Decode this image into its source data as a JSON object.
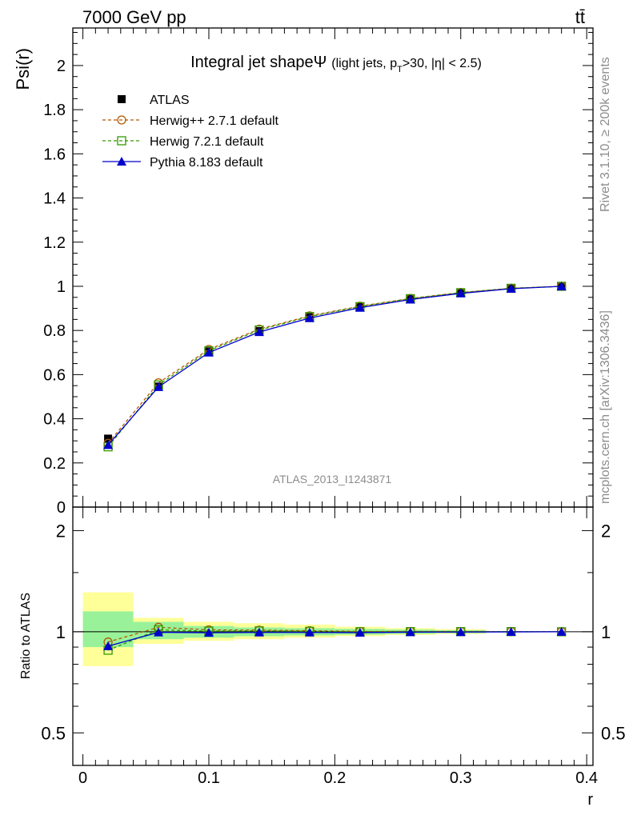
{
  "header": {
    "energy_label": "7000 GeV pp",
    "process_label": "tt̄"
  },
  "side_text": {
    "rivet": "Rivet 3.1.10, ≥ 200k events",
    "mcplots": "mcplots.cern.ch [arXiv:1306.3436]"
  },
  "watermark": "ATLAS_2013_I1243871",
  "colors": {
    "atlas": "#000000",
    "herwigpp": "#b35900",
    "herwig7": "#339900",
    "pythia": "#0000cc",
    "band_inner": "#99f299",
    "band_outer": "#ffff99"
  },
  "chart_data": [
    {
      "type": "line",
      "panel": "main",
      "title_main": "Integral jet shape",
      "title_symbol": "Ψ",
      "title_sub_pre": "(light jets, p",
      "title_sub_T": "T",
      "title_sub_post": ">30, |η| < 2.5)",
      "ylabel": "Psi(r)",
      "xlim": [
        -0.008,
        0.405
      ],
      "ylim": [
        0,
        2.17
      ],
      "yticks": [
        "0",
        "0.2",
        "0.4",
        "0.6",
        "0.8",
        "1",
        "1.2",
        "1.4",
        "1.6",
        "1.8",
        "2"
      ],
      "x": [
        0.02,
        0.06,
        0.1,
        0.14,
        0.18,
        0.22,
        0.26,
        0.3,
        0.34,
        0.38
      ],
      "legend": [
        "ATLAS",
        "Herwig++ 2.7.1 default",
        "Herwig 7.2.1 default",
        "Pythia 8.183 default"
      ],
      "series": [
        {
          "name": "ATLAS",
          "values": [
            0.31,
            0.546,
            0.705,
            0.797,
            0.86,
            0.908,
            0.943,
            0.97,
            0.99,
            1.0
          ]
        },
        {
          "name": "Herwig++ 2.7.1 default",
          "values": [
            0.289,
            0.563,
            0.714,
            0.806,
            0.866,
            0.91,
            0.945,
            0.972,
            0.991,
            1.0
          ]
        },
        {
          "name": "Herwig 7.2.1 default",
          "values": [
            0.273,
            0.553,
            0.708,
            0.802,
            0.863,
            0.908,
            0.944,
            0.971,
            0.991,
            1.0
          ]
        },
        {
          "name": "Pythia 8.183 default",
          "values": [
            0.281,
            0.544,
            0.7,
            0.793,
            0.856,
            0.903,
            0.94,
            0.968,
            0.989,
            1.0
          ]
        }
      ]
    },
    {
      "type": "line",
      "panel": "ratio",
      "ylabel": "Ratio to ATLAS",
      "xlabel": "r",
      "xticks": [
        "0",
        "0.1",
        "0.2",
        "0.3",
        "0.4"
      ],
      "yticks": [
        "0.5",
        "1",
        "2"
      ],
      "ylim_log": [
        0.4,
        2.35
      ],
      "band_bins": [
        {
          "lo": 0.0,
          "hi": 0.04,
          "inner": [
            0.9,
            1.15
          ],
          "outer": [
            0.79,
            1.31
          ]
        },
        {
          "lo": 0.04,
          "hi": 0.08,
          "inner": [
            0.95,
            1.07
          ],
          "outer": [
            0.92,
            1.1
          ]
        },
        {
          "lo": 0.08,
          "hi": 0.12,
          "inner": [
            0.96,
            1.04
          ],
          "outer": [
            0.94,
            1.07
          ]
        },
        {
          "lo": 0.12,
          "hi": 0.16,
          "inner": [
            0.97,
            1.03
          ],
          "outer": [
            0.95,
            1.06
          ]
        },
        {
          "lo": 0.16,
          "hi": 0.2,
          "inner": [
            0.975,
            1.025
          ],
          "outer": [
            0.96,
            1.05
          ]
        },
        {
          "lo": 0.2,
          "hi": 0.24,
          "inner": [
            0.98,
            1.02
          ],
          "outer": [
            0.97,
            1.035
          ]
        },
        {
          "lo": 0.24,
          "hi": 0.28,
          "inner": [
            0.985,
            1.015
          ],
          "outer": [
            0.978,
            1.025
          ]
        },
        {
          "lo": 0.28,
          "hi": 0.32,
          "inner": [
            0.99,
            1.01
          ],
          "outer": [
            0.985,
            1.018
          ]
        }
      ],
      "x": [
        0.02,
        0.06,
        0.1,
        0.14,
        0.18,
        0.22,
        0.26,
        0.3,
        0.34,
        0.38
      ],
      "series": [
        {
          "name": "Herwig++ 2.7.1 default",
          "values": [
            0.932,
            1.031,
            1.013,
            1.011,
            1.007,
            1.002,
            1.002,
            1.002,
            1.001,
            1.0
          ]
        },
        {
          "name": "Herwig 7.2.1 default",
          "values": [
            0.881,
            1.013,
            1.004,
            1.006,
            1.003,
            1.0,
            1.001,
            1.001,
            1.001,
            1.0
          ]
        },
        {
          "name": "Pythia 8.183 default",
          "values": [
            0.906,
            0.996,
            0.993,
            0.995,
            0.995,
            0.994,
            0.997,
            0.998,
            0.999,
            1.0
          ]
        }
      ]
    }
  ]
}
